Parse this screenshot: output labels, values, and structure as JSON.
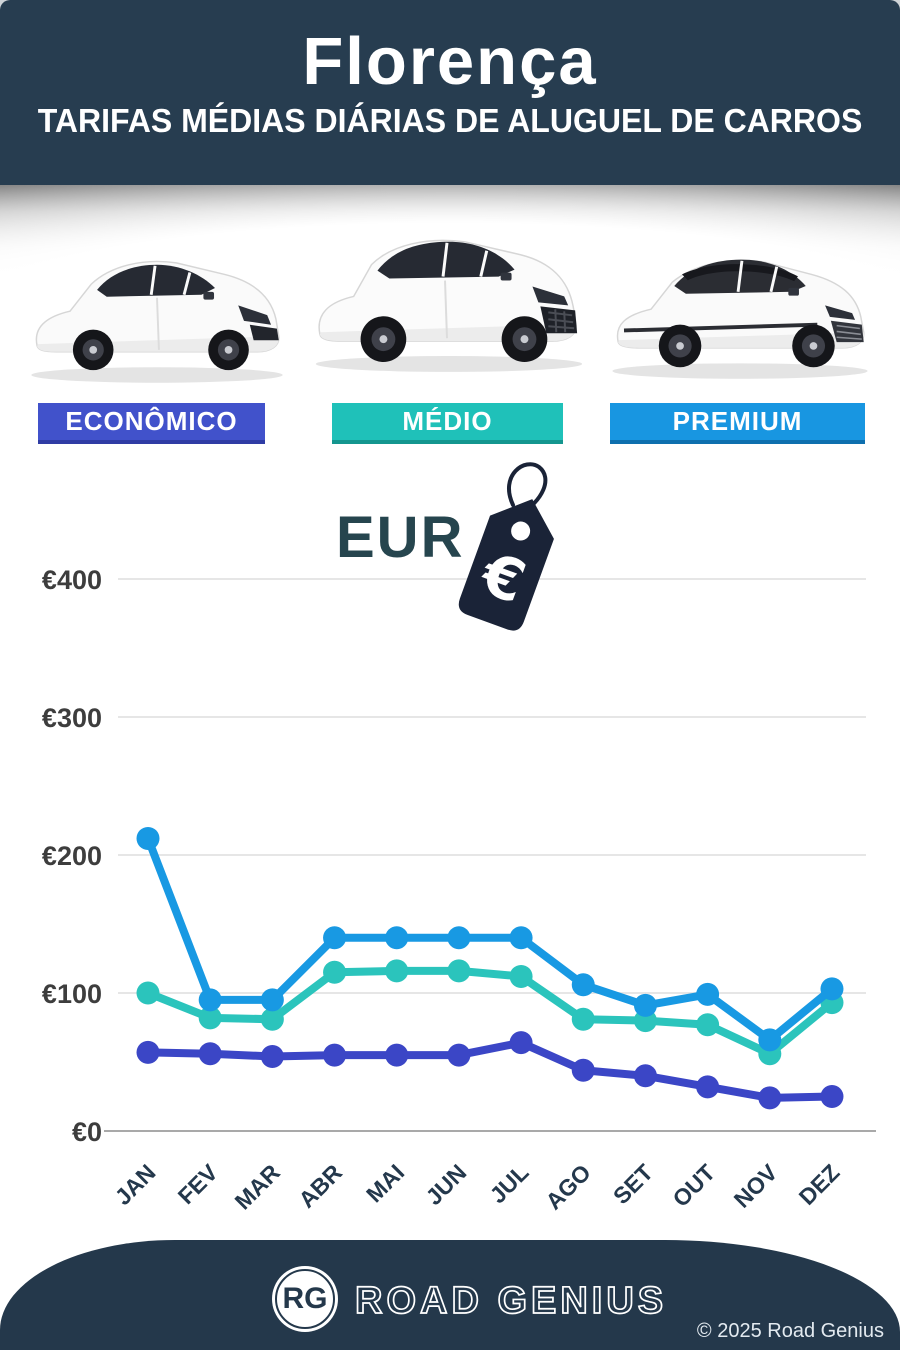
{
  "header": {
    "title": "Florença",
    "subtitle": "TARIFAS MÉDIAS DIÁRIAS DE ALUGUEL DE CARROS"
  },
  "categories": [
    {
      "label": "ECONÔMICO",
      "color": "#4152CB",
      "border": "#2F3CA4"
    },
    {
      "label": "MÉDIO",
      "color": "#1FC1B9",
      "border": "#14968F"
    },
    {
      "label": "PREMIUM",
      "color": "#1896E1",
      "border": "#0E6FAE"
    }
  ],
  "currency": {
    "label": "EUR",
    "icon": "euro-price-tag"
  },
  "chart_data": {
    "type": "line",
    "title": "Tarifas médias diárias de aluguel de carros — Florença",
    "ylabel": "EUR",
    "x": [
      "JAN",
      "FEV",
      "MAR",
      "ABR",
      "MAI",
      "JUN",
      "JUL",
      "AGO",
      "SET",
      "OUT",
      "NOV",
      "DEZ"
    ],
    "y_ticks": [
      {
        "value": 0,
        "label": "€0"
      },
      {
        "value": 100,
        "label": "€100"
      },
      {
        "value": 200,
        "label": "€200"
      },
      {
        "value": 300,
        "label": "€300"
      },
      {
        "value": 400,
        "label": "€400"
      }
    ],
    "ylim": [
      0,
      430
    ],
    "grid": true,
    "series": [
      {
        "name": "Econômico",
        "color": "#3B46C6",
        "values": [
          57,
          56,
          54,
          55,
          55,
          55,
          64,
          44,
          40,
          32,
          24,
          25
        ]
      },
      {
        "name": "Médio",
        "color": "#2BC4BC",
        "values": [
          100,
          82,
          81,
          115,
          116,
          116,
          112,
          81,
          80,
          77,
          56,
          93
        ]
      },
      {
        "name": "Premium",
        "color": "#1899E3",
        "values": [
          212,
          95,
          95,
          140,
          140,
          140,
          140,
          106,
          91,
          99,
          66,
          103
        ]
      }
    ],
    "draw_order": [
      1,
      0,
      2
    ],
    "legend_position": "category-bars-above-chart"
  },
  "footer": {
    "logo_initials": "RG",
    "brand": "ROAD GENIUS",
    "copyright": "© 2025 Road Genius"
  },
  "colors": {
    "navy": "#273D50",
    "grid": "#E6E6E6",
    "zero_axis": "#A9A9A9",
    "tick_text": "#3D3D3D",
    "month_text": "#24384C",
    "eur_text": "#26454E",
    "tag": "#1A2337"
  }
}
